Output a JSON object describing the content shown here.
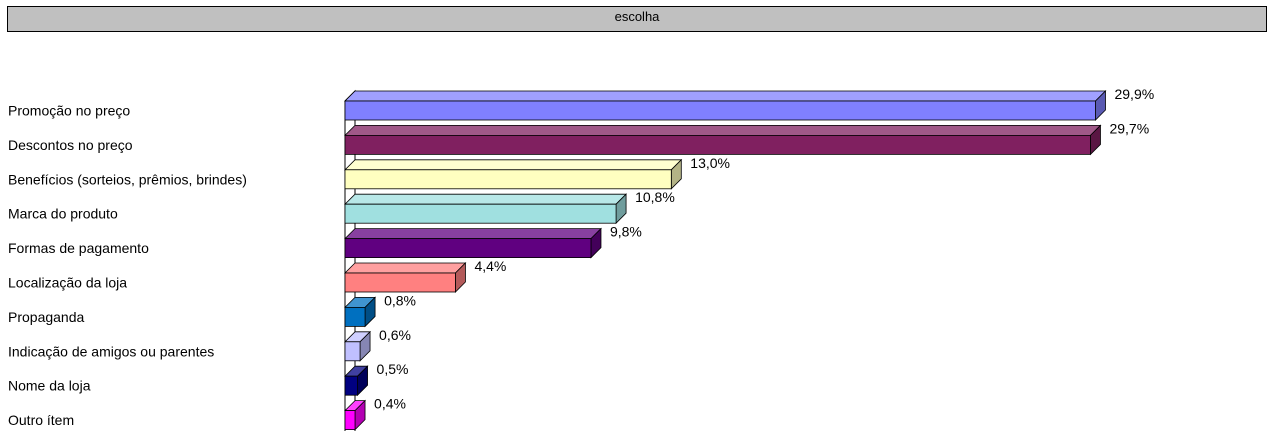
{
  "header": {
    "label": "escolha"
  },
  "chart_data": {
    "type": "bar",
    "orientation": "horizontal",
    "style": "3d",
    "categories": [
      "Promoção no preço",
      "Descontos no preço",
      "Benefícios (sorteios, prêmios, brindes)",
      "Marca do produto",
      "Formas de pagamento",
      "Localização da loja",
      "Propaganda",
      "Indicação de amigos ou parentes",
      "Nome da loja",
      "Outro ítem"
    ],
    "values": [
      29.9,
      29.7,
      13.0,
      10.8,
      9.8,
      4.4,
      0.8,
      0.6,
      0.5,
      0.4
    ],
    "value_labels": [
      "29,9%",
      "29,7%",
      "13,0%",
      "10,8%",
      "9,8%",
      "4,4%",
      "0,8%",
      "0,6%",
      "0,5%",
      "0,4%"
    ],
    "colors": [
      "#8080ff",
      "#802060",
      "#ffffc0",
      "#a0e0e0",
      "#600080",
      "#ff8080",
      "#0070c0",
      "#c0c0ff",
      "#000080",
      "#ff00ff"
    ],
    "grid": false,
    "legend": "none",
    "xlim": [
      0,
      30
    ]
  }
}
